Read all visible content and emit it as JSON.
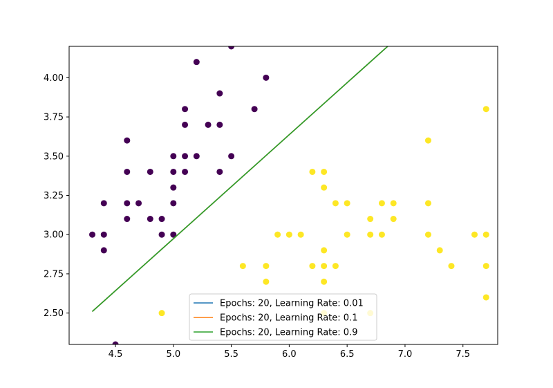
{
  "chart_data": {
    "type": "scatter",
    "title": "",
    "xlabel": "",
    "ylabel": "",
    "xlim": [
      4.1,
      7.8
    ],
    "ylim": [
      2.3,
      4.2
    ],
    "xticks": [
      "4.5",
      "5.0",
      "5.5",
      "6.0",
      "6.5",
      "7.0",
      "7.5"
    ],
    "yticks": [
      "2.50",
      "2.75",
      "3.00",
      "3.25",
      "3.50",
      "3.75",
      "4.00"
    ],
    "grid": false,
    "legend_position": "bottom-center",
    "classes": [
      {
        "color": "#440154",
        "points": [
          [
            5.5,
            4.2
          ],
          [
            5.2,
            4.1
          ],
          [
            5.8,
            4.0
          ],
          [
            5.4,
            3.9
          ],
          [
            5.1,
            3.8
          ],
          [
            5.7,
            3.8
          ],
          [
            5.1,
            3.7
          ],
          [
            5.3,
            3.7
          ],
          [
            5.4,
            3.7
          ],
          [
            4.6,
            3.6
          ],
          [
            5.0,
            3.5
          ],
          [
            5.1,
            3.5
          ],
          [
            5.2,
            3.5
          ],
          [
            5.5,
            3.5
          ],
          [
            4.6,
            3.4
          ],
          [
            4.8,
            3.4
          ],
          [
            5.0,
            3.4
          ],
          [
            5.1,
            3.4
          ],
          [
            5.4,
            3.4
          ],
          [
            5.0,
            3.3
          ],
          [
            4.4,
            3.2
          ],
          [
            4.6,
            3.2
          ],
          [
            4.7,
            3.2
          ],
          [
            5.0,
            3.2
          ],
          [
            4.6,
            3.1
          ],
          [
            4.8,
            3.1
          ],
          [
            4.9,
            3.1
          ],
          [
            4.3,
            3.0
          ],
          [
            4.4,
            3.0
          ],
          [
            4.9,
            3.0
          ],
          [
            5.0,
            3.0
          ],
          [
            4.4,
            2.9
          ],
          [
            4.5,
            2.3
          ]
        ]
      },
      {
        "color": "#fde725",
        "points": [
          [
            7.7,
            3.8
          ],
          [
            7.2,
            3.6
          ],
          [
            6.2,
            3.4
          ],
          [
            6.3,
            3.4
          ],
          [
            6.3,
            3.3
          ],
          [
            6.4,
            3.2
          ],
          [
            6.5,
            3.2
          ],
          [
            6.8,
            3.2
          ],
          [
            6.9,
            3.2
          ],
          [
            7.2,
            3.2
          ],
          [
            6.7,
            3.1
          ],
          [
            6.9,
            3.1
          ],
          [
            5.9,
            3.0
          ],
          [
            6.0,
            3.0
          ],
          [
            6.1,
            3.0
          ],
          [
            6.5,
            3.0
          ],
          [
            6.7,
            3.0
          ],
          [
            6.8,
            3.0
          ],
          [
            7.2,
            3.0
          ],
          [
            7.6,
            3.0
          ],
          [
            7.7,
            3.0
          ],
          [
            6.3,
            2.9
          ],
          [
            7.3,
            2.9
          ],
          [
            5.6,
            2.8
          ],
          [
            5.8,
            2.8
          ],
          [
            6.2,
            2.8
          ],
          [
            6.3,
            2.8
          ],
          [
            6.4,
            2.8
          ],
          [
            7.4,
            2.8
          ],
          [
            7.7,
            2.8
          ],
          [
            5.8,
            2.7
          ],
          [
            6.3,
            2.7
          ],
          [
            7.7,
            2.6
          ],
          [
            4.9,
            2.5
          ],
          [
            6.3,
            2.5
          ],
          [
            6.7,
            2.5
          ]
        ]
      }
    ],
    "series": [
      {
        "name": "Epochs: 20, Learning Rate: 0.01",
        "color": "#1f77b4",
        "x": [
          4.3,
          6.85
        ],
        "y": [
          2.51,
          4.2
        ]
      },
      {
        "name": "Epochs: 20, Learning Rate: 0.1",
        "color": "#ff7f0e",
        "x": [
          4.3,
          6.85
        ],
        "y": [
          2.51,
          4.2
        ]
      },
      {
        "name": "Epochs: 20, Learning Rate: 0.9",
        "color": "#2ca02c",
        "x": [
          4.3,
          6.85
        ],
        "y": [
          2.51,
          4.2
        ]
      }
    ]
  }
}
